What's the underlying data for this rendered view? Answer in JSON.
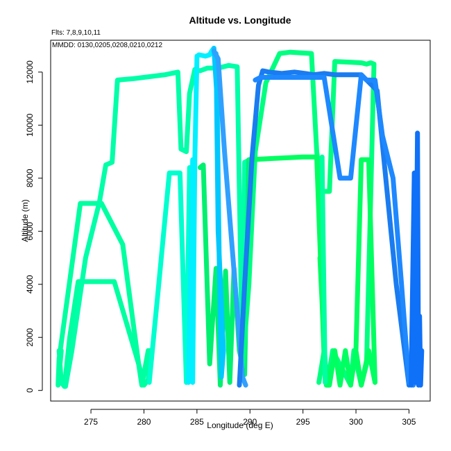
{
  "chart_data": {
    "type": "line",
    "title": "Altitude vs. Longitude",
    "notes": [
      "Flts: 7,8,9,10,11",
      "MMDD: 0130,0205,0208,0210,0212"
    ],
    "xlabel": "Longitude (deg E)",
    "ylabel": "Altitude (m)",
    "xlim": [
      271.2,
      307.0
    ],
    "ylim": [
      -400,
      13200
    ],
    "xticks": [
      275,
      280,
      285,
      290,
      295,
      300,
      305
    ],
    "yticks": [
      0,
      2000,
      4000,
      6000,
      8000,
      10000,
      12000
    ],
    "grid": false,
    "legend": "none",
    "series": [
      {
        "color": "#00FFA0",
        "x": [
          272.0,
          272.2,
          272.5,
          273.0,
          273.8,
          277.2,
          279.5,
          280.0,
          280.4,
          280.6,
          280.4,
          279.8,
          279.5,
          278.0,
          276.0,
          274.0,
          272.0,
          271.9,
          272.2
        ],
        "y": [
          1500,
          300,
          150,
          2000,
          4100,
          4100,
          1000,
          200,
          400,
          1500,
          1500,
          200,
          1000,
          5500,
          7050,
          7050,
          1200,
          200,
          1500
        ]
      },
      {
        "color": "#00FFA8",
        "x": [
          272.2,
          272.6,
          273.2,
          274.5,
          275.8,
          276.4,
          277.0,
          277.5,
          279.0,
          282.0,
          283.2,
          283.5,
          284.0,
          284.3,
          284.8,
          285.3,
          286.0,
          287.0,
          288.0,
          288.8,
          289.3,
          289.5,
          290.0
        ],
        "y": [
          300,
          150,
          1500,
          5000,
          7100,
          8500,
          8600,
          11700,
          11750,
          11900,
          12000,
          9100,
          9000,
          11200,
          12100,
          12050,
          12150,
          12150,
          12250,
          12200,
          600,
          8600,
          8700
        ]
      },
      {
        "color": "#00FFCE",
        "x": [
          280.5,
          281.4,
          282.4,
          283.4,
          284.0,
          284.3
        ],
        "y": [
          300,
          4000,
          8200,
          8200,
          300,
          8400
        ]
      },
      {
        "color": "#00F070",
        "x": [
          285.3,
          285.6,
          286.2,
          286.8,
          287.2,
          287.7,
          288.1,
          288.5,
          289.0,
          289.5,
          289.9,
          290.2
        ],
        "y": [
          8400,
          8500,
          1000,
          4600,
          200,
          4500,
          300,
          4600,
          1500,
          600,
          8700,
          8700
        ],
        "connect": [
          true,
          true,
          true,
          true,
          true,
          true,
          true,
          true,
          true,
          true,
          true
        ]
      },
      {
        "color": "#00FF80",
        "x": [
          289.3,
          289.9,
          290.5,
          291.5,
          292.8,
          293.8,
          295.8,
          296.3,
          296.8,
          297.5,
          298.0,
          300.5,
          301.0,
          301.4,
          301.7,
          301.0,
          300.5,
          299.8,
          299.5,
          297.8,
          297.3,
          297.0,
          296.5
        ],
        "y": [
          900,
          4000,
          9000,
          11600,
          12700,
          12750,
          12700,
          9000,
          7500,
          7500,
          12400,
          12350,
          12300,
          12350,
          12300,
          1000,
          200,
          1500,
          200,
          1500,
          200,
          1500,
          300
        ]
      },
      {
        "color": "#00FF60",
        "x": [
          290.0,
          292.5,
          295.0,
          296.3,
          297.0,
          297.5,
          298.0,
          298.5,
          299.0,
          299.5,
          300.0,
          300.5,
          301.2,
          301.8,
          301.2,
          300.5,
          300.0,
          299.5,
          299.0,
          298.5,
          298.0,
          297.5,
          297.2,
          296.9,
          296.6
        ],
        "y": [
          8700,
          8750,
          8800,
          8800,
          1200,
          200,
          1500,
          200,
          1500,
          200,
          1500,
          8700,
          8700,
          300,
          1500,
          200,
          1500,
          200,
          1500,
          200,
          1500,
          200,
          200,
          2500,
          5000
        ]
      },
      {
        "color": "#00FFA0",
        "x": [
          296.8,
          296.9,
          297.1
        ],
        "y": [
          8800,
          5800,
          300
        ]
      },
      {
        "color": "#00F0FF",
        "x": [
          284.2,
          284.6,
          284.6,
          284.8,
          285.0,
          285.2,
          285.8,
          286.2,
          286.4,
          286.6
        ],
        "y": [
          300,
          8700,
          300,
          8700,
          12600,
          12650,
          12600,
          12650,
          12800,
          12900
        ]
      },
      {
        "color": "#00C8FF",
        "x": [
          286.6,
          286.9,
          287.1,
          287.3,
          287.5,
          287.0,
          286.8
        ],
        "y": [
          12900,
          11000,
          5000,
          500,
          1500,
          6000,
          12700
        ]
      },
      {
        "color": "#30A0FF",
        "x": [
          286.6,
          287.0,
          287.6,
          288.2,
          288.8,
          289.3,
          289.6
        ],
        "y": [
          12800,
          12500,
          9000,
          6000,
          3000,
          500,
          200
        ]
      },
      {
        "color": "#1A7CF0",
        "x": [
          289.0,
          289.5,
          290.2,
          290.8,
          291.2,
          291.8,
          293.0,
          294.2,
          295.2,
          296.0,
          297.0,
          298.0,
          299.5,
          300.5,
          302.0,
          303.3,
          303.8,
          305.0
        ],
        "y": [
          200,
          4000,
          8800,
          11500,
          12050,
          12000,
          11950,
          12000,
          11950,
          11900,
          11950,
          11900,
          11900,
          11900,
          11300,
          6000,
          4000,
          200
        ]
      },
      {
        "color": "#1E88FF",
        "x": [
          290.5,
          291.0,
          292.5,
          295.0,
          297.0,
          298.5,
          299.5,
          300.5,
          301.0,
          301.8,
          302.5,
          303.5,
          304.3,
          305.0,
          305.4
        ],
        "y": [
          11700,
          11800,
          11800,
          11800,
          11800,
          8000,
          8000,
          11900,
          11700,
          11700,
          9600,
          8000,
          4000,
          300,
          200
        ]
      },
      {
        "color": "#0F70F8",
        "x": [
          305.2,
          305.5,
          305.6,
          305.8,
          305.9,
          306.0,
          306.1,
          306.2
        ],
        "y": [
          200,
          8200,
          300,
          9700,
          200,
          2800,
          200,
          1500
        ]
      }
    ]
  }
}
